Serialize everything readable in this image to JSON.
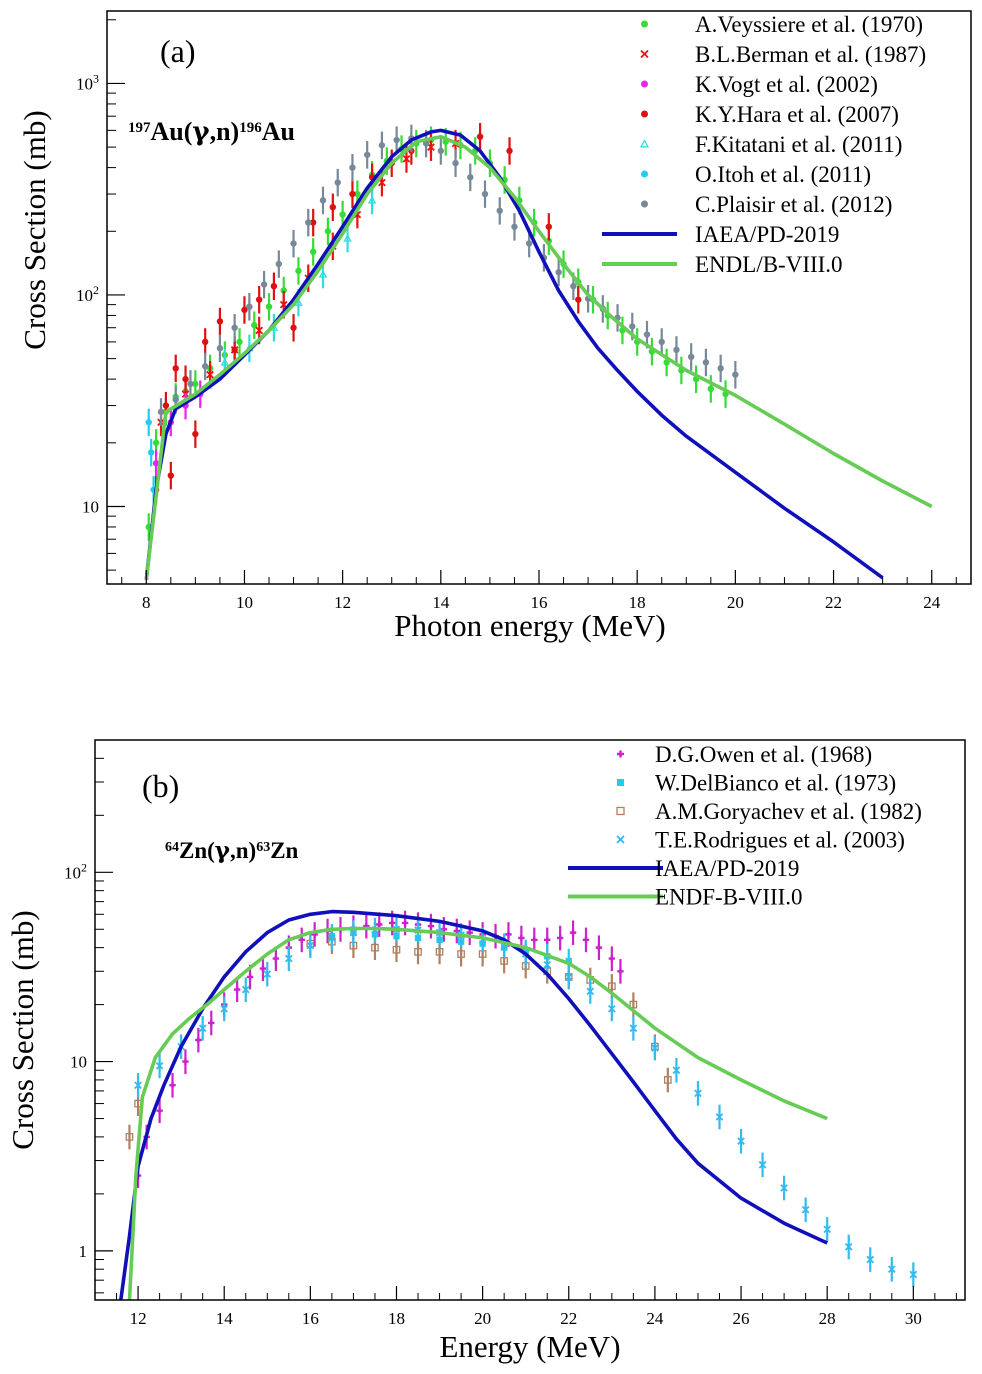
{
  "chart_data": [
    {
      "type": "scatter",
      "panel_label": "(a)",
      "reaction": {
        "a": "197",
        "target": "Au(",
        "gamma": "γ",
        "rest": ",n)",
        "b": "196",
        "product": "Au"
      },
      "xlabel": "Photon energy (MeV)",
      "ylabel": "Cross Section (mb)",
      "xlim": [
        7.2,
        24.8
      ],
      "ylim": [
        4.3,
        2200
      ],
      "yscale": "log",
      "x_ticks": [
        {
          "v": 8,
          "label": "8"
        },
        {
          "v": 10,
          "label": "10"
        },
        {
          "v": 12,
          "label": "12"
        },
        {
          "v": 14,
          "label": "14"
        },
        {
          "v": 16,
          "label": "16"
        },
        {
          "v": 18,
          "label": "18"
        },
        {
          "v": 20,
          "label": "20"
        },
        {
          "v": 22,
          "label": "22"
        },
        {
          "v": 24,
          "label": "24"
        }
      ],
      "y_ticks": [
        {
          "v": 10,
          "label": "10",
          "exp": ""
        },
        {
          "v": 100,
          "label": "10",
          "exp": "2"
        },
        {
          "v": 1000,
          "label": "10",
          "exp": "3"
        }
      ],
      "legend": [
        {
          "name": "A.Veyssiere et al. (1970)",
          "marker": "dot",
          "color": "#33dd33"
        },
        {
          "name": "B.L.Berman et al. (1987)",
          "marker": "cross",
          "color": "#ee1111"
        },
        {
          "name": "K.Vogt et al. (2002)",
          "marker": "dot",
          "color": "#ee22ee"
        },
        {
          "name": "K.Y.Hara et al. (2007)",
          "marker": "dot",
          "color": "#dd1111"
        },
        {
          "name": "F.Kitatani et al. (2011)",
          "marker": "triangle",
          "color": "#33dddd"
        },
        {
          "name": "O.Itoh et al. (2011)",
          "marker": "dot",
          "color": "#22ccee"
        },
        {
          "name": "C.Plaisir et al. (2012)",
          "marker": "dot",
          "color": "#778899"
        },
        {
          "name": "IAEA/PD-2019",
          "marker": "line",
          "color": "#1010bb"
        },
        {
          "name": "ENDL/B-VIII.0",
          "marker": "line",
          "color": "#66cc55"
        }
      ],
      "curves": [
        {
          "name": "IAEA/PD-2019",
          "color": "#1010bb",
          "x": [
            8.0,
            8.2,
            8.4,
            8.6,
            9.0,
            9.5,
            10.0,
            10.5,
            11.0,
            11.5,
            12.0,
            12.5,
            13.0,
            13.4,
            13.8,
            14.0,
            14.4,
            14.8,
            15.2,
            15.6,
            16.0,
            16.4,
            16.8,
            17.2,
            17.6,
            18.0,
            18.5,
            19.0,
            20.0,
            21.0,
            22.0,
            23.0
          ],
          "y": [
            4.5,
            12,
            22,
            29,
            33,
            40,
            52,
            68,
            95,
            140,
            210,
            320,
            450,
            540,
            590,
            600,
            570,
            480,
            360,
            250,
            160,
            105,
            75,
            56,
            44,
            35,
            27,
            21.5,
            14.5,
            9.8,
            6.8,
            4.6
          ]
        },
        {
          "name": "ENDL/B-VIII.0",
          "color": "#66cc55",
          "x": [
            8.0,
            8.4,
            9.0,
            9.5,
            10.0,
            10.5,
            11.0,
            11.5,
            12.0,
            12.5,
            13.0,
            13.5,
            14.0,
            14.5,
            15.0,
            15.5,
            16.0,
            16.5,
            17.0,
            17.5,
            18.0,
            19.0,
            20.0,
            21.0,
            22.0,
            23.0,
            24.0
          ],
          "y": [
            4.5,
            28,
            34,
            42,
            53,
            68,
            90,
            130,
            195,
            300,
            420,
            530,
            560,
            500,
            400,
            290,
            200,
            140,
            100,
            78,
            62,
            44,
            33.5,
            24.5,
            17.8,
            13.2,
            10
          ]
        }
      ],
      "series": [
        {
          "name": "A.Veyssiere et al. (1970)",
          "color": "#33dd33",
          "x": [
            8.05,
            8.2,
            8.4,
            8.6,
            8.8,
            9.0,
            9.3,
            9.6,
            9.9,
            10.2,
            10.5,
            10.8,
            11.1,
            11.4,
            11.7,
            12.0,
            12.3,
            12.6,
            12.9,
            13.2,
            13.5,
            13.8,
            14.1,
            14.4,
            14.7,
            15.0,
            15.3,
            15.6,
            15.9,
            16.2,
            16.5,
            16.8,
            17.1,
            17.4,
            17.7,
            18.0,
            18.3,
            18.6,
            18.9,
            19.2,
            19.5,
            19.8
          ],
          "y": [
            8,
            20,
            28,
            33,
            35,
            38,
            45,
            52,
            60,
            72,
            88,
            105,
            130,
            160,
            200,
            240,
            300,
            370,
            430,
            490,
            520,
            540,
            530,
            510,
            480,
            420,
            350,
            280,
            220,
            180,
            140,
            115,
            95,
            80,
            68,
            60,
            54,
            48,
            44,
            40,
            36,
            34
          ]
        },
        {
          "name": "B.L.Berman et al. (1987)",
          "color": "#ee1111",
          "x": [
            8.3,
            8.8,
            9.3,
            9.8,
            10.3,
            10.8,
            11.3,
            11.8,
            12.3,
            12.8,
            13.3,
            13.8,
            14.3
          ],
          "y": [
            25,
            34,
            42,
            55,
            68,
            90,
            120,
            170,
            240,
            340,
            440,
            500,
            520
          ]
        },
        {
          "name": "K.Vogt et al. (2002)",
          "color": "#ee22ee",
          "x": [
            8.2,
            8.5,
            8.8,
            9.1
          ],
          "y": [
            16,
            25,
            30,
            34
          ]
        },
        {
          "name": "K.Y.Hara et al. (2007)",
          "color": "#dd1111",
          "x": [
            8.2,
            8.4,
            8.5,
            8.6,
            8.8,
            9.0,
            9.2,
            9.5,
            9.8,
            10.0,
            10.3,
            10.6,
            11.0,
            11.4,
            11.8,
            12.2,
            12.6,
            13.0,
            13.4,
            14.8,
            15.4,
            16.2,
            16.8
          ],
          "y": [
            12,
            30,
            14,
            45,
            40,
            22,
            60,
            75,
            55,
            85,
            95,
            110,
            70,
            220,
            260,
            300,
            360,
            420,
            480,
            560,
            480,
            210,
            95
          ]
        },
        {
          "name": "F.Kitatani et al. (2011)",
          "color": "#33dddd",
          "x": [
            9.6,
            10.1,
            10.6,
            11.1,
            11.6,
            12.1,
            12.6
          ],
          "y": [
            48,
            56,
            70,
            92,
            125,
            185,
            280
          ]
        },
        {
          "name": "O.Itoh et al. (2011)",
          "color": "#22ccee",
          "x": [
            8.05,
            8.1,
            8.15
          ],
          "y": [
            25,
            18,
            12
          ]
        },
        {
          "name": "C.Plaisir et al. (2012)",
          "color": "#778899",
          "x": [
            8.3,
            8.6,
            8.9,
            9.2,
            9.5,
            9.8,
            10.1,
            10.4,
            10.7,
            11.0,
            11.3,
            11.6,
            11.9,
            12.2,
            12.5,
            12.8,
            13.1,
            13.4,
            13.7,
            14.0,
            14.3,
            14.6,
            14.9,
            15.2,
            15.5,
            15.8,
            16.1,
            16.4,
            16.7,
            17.0,
            17.3,
            17.6,
            17.9,
            18.2,
            18.5,
            18.8,
            19.1,
            19.4,
            19.7,
            20.0
          ],
          "y": [
            28,
            32,
            38,
            46,
            56,
            70,
            88,
            112,
            140,
            175,
            220,
            280,
            340,
            400,
            460,
            510,
            540,
            550,
            520,
            480,
            420,
            360,
            300,
            250,
            210,
            175,
            150,
            128,
            110,
            96,
            86,
            78,
            71,
            65,
            60,
            55,
            51,
            48,
            45,
            42
          ]
        }
      ]
    },
    {
      "type": "scatter",
      "panel_label": "(b)",
      "reaction": {
        "a": "64",
        "target": "Zn(",
        "gamma": "γ",
        "rest": ",n)",
        "b": "63",
        "product": "Zn"
      },
      "xlabel": "Energy (MeV)",
      "ylabel": "Cross Section (mb)",
      "xlim": [
        11,
        31.2
      ],
      "ylim": [
        0.55,
        500
      ],
      "yscale": "log",
      "x_ticks": [
        {
          "v": 12,
          "label": "12"
        },
        {
          "v": 14,
          "label": "14"
        },
        {
          "v": 16,
          "label": "16"
        },
        {
          "v": 18,
          "label": "18"
        },
        {
          "v": 20,
          "label": "20"
        },
        {
          "v": 22,
          "label": "22"
        },
        {
          "v": 24,
          "label": "24"
        },
        {
          "v": 26,
          "label": "26"
        },
        {
          "v": 28,
          "label": "28"
        },
        {
          "v": 30,
          "label": "30"
        }
      ],
      "y_ticks": [
        {
          "v": 1,
          "label": "1",
          "exp": ""
        },
        {
          "v": 10,
          "label": "10",
          "exp": ""
        },
        {
          "v": 100,
          "label": "10",
          "exp": "2"
        }
      ],
      "legend": [
        {
          "name": "D.G.Owen et al. (1968)",
          "marker": "plus",
          "color": "#cc22cc"
        },
        {
          "name": "W.DelBianco et al. (1973)",
          "marker": "square",
          "color": "#22ccee"
        },
        {
          "name": "A.M.Goryachev et al. (1982)",
          "marker": "open-square",
          "color": "#b08060"
        },
        {
          "name": "T.E.Rodrigues et al. (2003)",
          "marker": "cross",
          "color": "#33bbee"
        },
        {
          "name": "IAEA/PD-2019",
          "marker": "line",
          "color": "#1010bb"
        },
        {
          "name": "ENDF-B-VIII.0",
          "marker": "line",
          "color": "#66cc55"
        }
      ],
      "curves": [
        {
          "name": "IAEA/PD-2019",
          "color": "#1010bb",
          "x": [
            11.6,
            11.8,
            12.0,
            12.3,
            12.6,
            13.0,
            13.5,
            14.0,
            14.5,
            15.0,
            15.5,
            16.0,
            16.5,
            17.0,
            18.0,
            19.0,
            20.0,
            20.5,
            21.0,
            21.5,
            22.0,
            22.5,
            23.0,
            23.5,
            24.0,
            24.5,
            25.0,
            26.0,
            27.0,
            28.0
          ],
          "y": [
            0.55,
            1.2,
            2.8,
            5,
            7.5,
            12,
            19,
            28,
            38,
            48,
            56,
            60,
            62,
            61.5,
            59,
            55,
            49,
            44,
            37,
            29,
            21.5,
            15.5,
            11,
            7.8,
            5.5,
            3.9,
            2.9,
            1.9,
            1.4,
            1.1
          ]
        },
        {
          "name": "ENDF-B-VIII.0",
          "color": "#66cc55",
          "x": [
            11.8,
            11.95,
            12.1,
            12.4,
            12.8,
            13.2,
            13.6,
            14.0,
            14.5,
            15.0,
            15.5,
            16.0,
            16.5,
            17.0,
            17.5,
            18.0,
            19.0,
            20.0,
            21.0,
            22.0,
            22.5,
            23.0,
            24.0,
            25.0,
            26.0,
            27.0,
            28.0
          ],
          "y": [
            0.55,
            2.5,
            6.5,
            10.5,
            14,
            17,
            20,
            24,
            30,
            37,
            44,
            48,
            50,
            50.5,
            50.5,
            50,
            48,
            45,
            40,
            33,
            28,
            23,
            15,
            10.5,
            8,
            6.2,
            5
          ]
        }
      ],
      "series": [
        {
          "name": "D.G.Owen et al. (1968)",
          "color": "#cc22cc",
          "x": [
            12.0,
            12.2,
            12.5,
            12.8,
            13.1,
            13.4,
            13.7,
            14.0,
            14.3,
            14.6,
            14.9,
            15.2,
            15.5,
            15.8,
            16.1,
            16.4,
            16.7,
            17.0,
            17.3,
            17.6,
            17.9,
            18.2,
            18.5,
            18.8,
            19.1,
            19.4,
            19.7,
            20.0,
            20.3,
            20.6,
            20.9,
            21.2,
            21.5,
            21.8,
            22.1,
            22.4,
            22.7,
            23.0,
            23.2
          ],
          "y": [
            2.5,
            4,
            5.5,
            7.5,
            10,
            13,
            16,
            20,
            24,
            28,
            31,
            35,
            40,
            44,
            47,
            49,
            50,
            51,
            52,
            53,
            54,
            54,
            53,
            52,
            50,
            49,
            48,
            47,
            46,
            47,
            45,
            44,
            44,
            45,
            48,
            44,
            40,
            35,
            30
          ]
        },
        {
          "name": "W.DelBianco et al. (1973)",
          "color": "#22ccee",
          "x": [
            16.5,
            17.0,
            17.5,
            18.0,
            18.5,
            19.0,
            19.5,
            20.0,
            20.5,
            21.0,
            21.5,
            22.0
          ],
          "y": [
            46,
            48,
            47,
            46,
            45,
            44,
            43,
            42,
            40,
            38,
            36,
            34
          ]
        },
        {
          "name": "A.M.Goryachev et al. (1982)",
          "color": "#b08060",
          "x": [
            11.8,
            12.0,
            16.0,
            16.5,
            17.0,
            17.5,
            18.0,
            18.5,
            19.0,
            19.5,
            20.0,
            20.5,
            21.0,
            21.5,
            22.0,
            22.5,
            23.0,
            23.5,
            24.0,
            24.3
          ],
          "y": [
            4,
            6,
            42,
            43,
            41,
            40,
            39,
            38,
            38,
            37,
            37,
            34,
            32,
            30,
            28,
            27,
            25,
            20,
            12,
            8
          ]
        },
        {
          "name": "T.E.Rodrigues et al. (2003)",
          "color": "#33bbee",
          "x": [
            12.0,
            12.5,
            13.0,
            13.5,
            14.0,
            14.5,
            15.0,
            15.5,
            16.0,
            16.5,
            17.0,
            17.5,
            18.0,
            18.5,
            19.0,
            19.5,
            20.0,
            20.5,
            21.0,
            21.5,
            22.0,
            22.5,
            23.0,
            23.5,
            24.0,
            24.5,
            25.0,
            25.5,
            26.0,
            26.5,
            27.0,
            27.5,
            28.0,
            28.5,
            29.0,
            29.5,
            30.0
          ],
          "y": [
            7.5,
            9.5,
            12,
            15,
            19,
            24,
            29,
            35,
            41,
            45,
            48,
            49.5,
            50,
            49.5,
            48,
            46.5,
            44,
            41,
            37,
            32.5,
            28,
            23.5,
            19,
            15,
            11.8,
            9,
            6.8,
            5.1,
            3.8,
            2.85,
            2.15,
            1.65,
            1.3,
            1.05,
            0.9,
            0.8,
            0.75
          ]
        }
      ]
    }
  ]
}
